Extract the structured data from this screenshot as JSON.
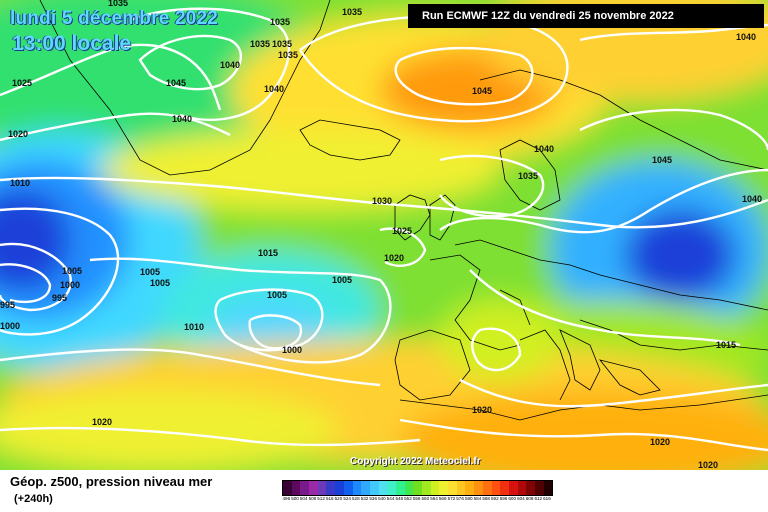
{
  "header": {
    "date": "lundi 5 décembre 2022",
    "local_time": "13:00 locale",
    "run": "Run ECMWF 12Z du vendredi 25 novembre 2022"
  },
  "footer": {
    "parameter": "Géop. z500, pression niveau mer",
    "lead_time": "(+240h)",
    "copyright": "Copyright 2022 Meteociel.fr"
  },
  "isobar_labels": [
    "1035",
    "1035",
    "1035",
    "1035",
    "1035",
    "1040",
    "1045",
    "1040",
    "1025",
    "1040",
    "1035",
    "1020",
    "1010",
    "1030",
    "1015",
    "1005",
    "1000",
    "995",
    "995",
    "1000",
    "1005",
    "1005",
    "1010",
    "1005",
    "1000",
    "1005",
    "1025",
    "1020",
    "1045",
    "1040",
    "1040",
    "1035",
    "1045",
    "1040",
    "1015",
    "1020",
    "1020",
    "1020",
    "1020"
  ],
  "scale": {
    "values": [
      "496",
      "500",
      "504",
      "508",
      "512",
      "516",
      "520",
      "524",
      "528",
      "532",
      "536",
      "540",
      "544",
      "548",
      "552",
      "556",
      "560",
      "564",
      "568",
      "572",
      "576",
      "580",
      "584",
      "588",
      "592",
      "596",
      "600",
      "604",
      "608",
      "612",
      "616"
    ],
    "colors": [
      "#3a0033",
      "#5b0a5e",
      "#7a1a8a",
      "#9a2aa8",
      "#6a3ab8",
      "#3a3ac8",
      "#1a40d8",
      "#1060f0",
      "#2088ff",
      "#30a8ff",
      "#40c8ff",
      "#50e0f0",
      "#40f0c8",
      "#30f090",
      "#40e850",
      "#70e020",
      "#a0e820",
      "#d0f020",
      "#f0f030",
      "#ffe030",
      "#ffc820",
      "#ffb010",
      "#ff9010",
      "#ff7010",
      "#ff5010",
      "#f03010",
      "#d81010",
      "#b00808",
      "#800404",
      "#500202",
      "#200000"
    ]
  }
}
